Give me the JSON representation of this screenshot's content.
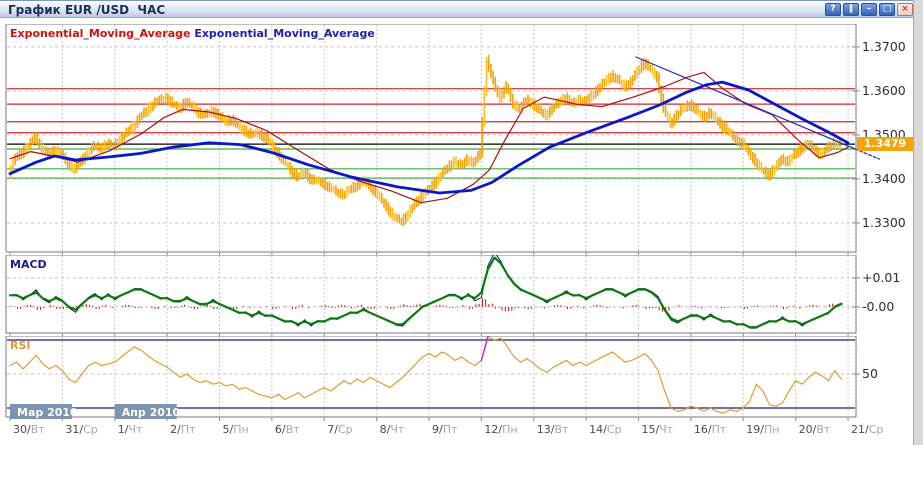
{
  "window": {
    "title": "График EUR /USD  ЧАС",
    "buttons": [
      {
        "name": "help",
        "glyph": "?"
      },
      {
        "name": "pause",
        "glyph": "‖"
      },
      {
        "name": "minimize",
        "glyph": "–"
      },
      {
        "name": "maximize",
        "glyph": "□"
      },
      {
        "name": "close",
        "glyph": "×"
      }
    ]
  },
  "main_chart": {
    "legend": [
      {
        "label": "Exponential_Moving_Average",
        "color": "#cc1111"
      },
      {
        "label": "Exponential_Moving_Average",
        "color": "#2020b0"
      }
    ],
    "current_price": "1.3479",
    "current_price_bg": "#f5a40a"
  },
  "chart_data": [
    {
      "type": "candlestick",
      "panel": "price",
      "x_tick_labels": [
        "30/Вт",
        "31/Ср",
        "1/Чт",
        "2/Пт",
        "5/Пн",
        "6/Вт",
        "7/Ср",
        "8/Чт",
        "9/Пт",
        "12/Пн",
        "13/Вт",
        "14/Ср",
        "15/Чт",
        "16/Пт",
        "19/Пн",
        "20/Вт",
        "21/Ср"
      ],
      "months": [
        {
          "label": "Мар 2010",
          "day": 0
        },
        {
          "label": "Апр 2010",
          "day": 2
        }
      ],
      "y_ticks": [
        1.37,
        1.36,
        1.35,
        1.34,
        1.33
      ],
      "y_tick_labels": [
        "1.3700",
        "1.3600",
        "1.3500",
        "1.3400",
        "1.3300"
      ],
      "y_range": [
        1.3234,
        1.3752
      ],
      "samples_per_day": 8,
      "closes": [
        1.3415,
        1.3448,
        1.346,
        1.3475,
        1.3495,
        1.347,
        1.3455,
        1.3465,
        1.3455,
        1.3435,
        1.3422,
        1.344,
        1.346,
        1.3475,
        1.347,
        1.348,
        1.3475,
        1.349,
        1.3505,
        1.352,
        1.354,
        1.3555,
        1.357,
        1.358,
        1.3585,
        1.357,
        1.356,
        1.3575,
        1.3565,
        1.355,
        1.3545,
        1.3555,
        1.3545,
        1.353,
        1.3535,
        1.352,
        1.351,
        1.35,
        1.3505,
        1.3495,
        1.348,
        1.346,
        1.344,
        1.342,
        1.3405,
        1.3415,
        1.34,
        1.3395,
        1.339,
        1.338,
        1.337,
        1.3365,
        1.3375,
        1.3385,
        1.3395,
        1.3385,
        1.337,
        1.335,
        1.333,
        1.331,
        1.3305,
        1.332,
        1.3345,
        1.336,
        1.3375,
        1.339,
        1.341,
        1.3425,
        1.344,
        1.343,
        1.3445,
        1.3435,
        1.346,
        1.367,
        1.362,
        1.3585,
        1.361,
        1.357,
        1.356,
        1.358,
        1.357,
        1.3555,
        1.3545,
        1.356,
        1.3575,
        1.3585,
        1.357,
        1.358,
        1.3575,
        1.359,
        1.3605,
        1.362,
        1.3635,
        1.3625,
        1.361,
        1.362,
        1.3645,
        1.3665,
        1.365,
        1.363,
        1.356,
        1.3525,
        1.3545,
        1.356,
        1.357,
        1.3555,
        1.354,
        1.355,
        1.3535,
        1.352,
        1.3505,
        1.349,
        1.348,
        1.346,
        1.344,
        1.342,
        1.3408,
        1.3425,
        1.3445,
        1.344,
        1.3455,
        1.347,
        1.348,
        1.3465,
        1.3455,
        1.347,
        1.3482,
        1.3479
      ],
      "levels": {
        "resistance": [
          1.3605,
          1.357,
          1.353,
          1.3505
        ],
        "current": 1.3479,
        "support": [
          1.3468,
          1.3423,
          1.3402
        ]
      },
      "ema_slow_keypoints": [
        [
          0,
          1.3412
        ],
        [
          0.5,
          1.3438
        ],
        [
          0.85,
          1.3452
        ],
        [
          1.25,
          1.3443
        ],
        [
          1.9,
          1.345
        ],
        [
          2.5,
          1.3458
        ],
        [
          3.1,
          1.3472
        ],
        [
          3.8,
          1.3482
        ],
        [
          4.4,
          1.3478
        ],
        [
          5.0,
          1.346
        ],
        [
          5.7,
          1.3432
        ],
        [
          6.5,
          1.3405
        ],
        [
          7.4,
          1.3382
        ],
        [
          8.2,
          1.3368
        ],
        [
          8.8,
          1.3374
        ],
        [
          9.2,
          1.3392
        ],
        [
          9.7,
          1.343
        ],
        [
          10.3,
          1.3472
        ],
        [
          11.0,
          1.3505
        ],
        [
          11.8,
          1.354
        ],
        [
          12.4,
          1.3568
        ],
        [
          12.9,
          1.3596
        ],
        [
          13.3,
          1.3614
        ],
        [
          13.6,
          1.362
        ],
        [
          14.1,
          1.3602
        ],
        [
          14.6,
          1.357
        ],
        [
          15.1,
          1.3538
        ],
        [
          15.6,
          1.3508
        ],
        [
          16.0,
          1.3482
        ]
      ],
      "ema_fast_keypoints": [
        [
          0,
          1.3446
        ],
        [
          0.4,
          1.3462
        ],
        [
          0.9,
          1.345
        ],
        [
          1.3,
          1.3438
        ],
        [
          1.9,
          1.3464
        ],
        [
          2.5,
          1.3502
        ],
        [
          2.95,
          1.354
        ],
        [
          3.3,
          1.3558
        ],
        [
          3.8,
          1.3552
        ],
        [
          4.3,
          1.3538
        ],
        [
          4.9,
          1.351
        ],
        [
          5.5,
          1.3465
        ],
        [
          6.1,
          1.3422
        ],
        [
          6.7,
          1.3394
        ],
        [
          7.3,
          1.3372
        ],
        [
          7.85,
          1.3346
        ],
        [
          8.35,
          1.3356
        ],
        [
          8.85,
          1.3388
        ],
        [
          9.15,
          1.342
        ],
        [
          9.45,
          1.3488
        ],
        [
          9.8,
          1.356
        ],
        [
          10.2,
          1.3586
        ],
        [
          10.8,
          1.357
        ],
        [
          11.3,
          1.3564
        ],
        [
          11.9,
          1.3586
        ],
        [
          12.5,
          1.361
        ],
        [
          12.95,
          1.3632
        ],
        [
          13.25,
          1.3642
        ],
        [
          13.6,
          1.3606
        ],
        [
          14.05,
          1.357
        ],
        [
          14.55,
          1.3546
        ],
        [
          15.05,
          1.3488
        ],
        [
          15.45,
          1.3448
        ],
        [
          15.8,
          1.346
        ],
        [
          16.0,
          1.3472
        ]
      ],
      "trendline": [
        [
          11.95,
          1.3677
        ],
        [
          16.6,
          1.3445
        ]
      ],
      "current_price": 1.3479
    },
    {
      "type": "line",
      "panel": "indicator",
      "label": "MACD",
      "y_tick_labels": [
        "+0.01",
        "-0.00"
      ],
      "y_tick_values": [
        0.01,
        0
      ],
      "y_range": [
        -0.009,
        0.0179
      ],
      "values_x1000": [
        4,
        4,
        3,
        4,
        5,
        3,
        2,
        3,
        2,
        0,
        -1,
        1,
        3,
        4,
        3,
        4,
        3,
        4,
        5,
        6,
        6,
        5,
        4,
        3,
        3,
        2,
        2,
        3,
        2,
        1,
        1,
        2,
        1,
        0,
        -1,
        -2,
        -2,
        -3,
        -2,
        -3,
        -3,
        -4,
        -5,
        -5,
        -6,
        -5,
        -6,
        -5,
        -5,
        -4,
        -4,
        -3,
        -2,
        -2,
        -1,
        -2,
        -3,
        -4,
        -5,
        -6,
        -6,
        -4,
        -2,
        0,
        1,
        2,
        3,
        4,
        4,
        3,
        4,
        3,
        5,
        13,
        17,
        15,
        11,
        8,
        6,
        5,
        4,
        3,
        2,
        3,
        4,
        5,
        4,
        4,
        3,
        4,
        5,
        6,
        6,
        5,
        4,
        5,
        6,
        6,
        5,
        3,
        -1,
        -4,
        -5,
        -4,
        -3,
        -3,
        -4,
        -3,
        -4,
        -5,
        -5,
        -6,
        -6,
        -7,
        -7,
        -6,
        -5,
        -5,
        -4,
        -5,
        -5,
        -6,
        -5,
        -4,
        -3,
        -2,
        0,
        1
      ],
      "line_color": "#0a7a0a",
      "signal_color": "#101c70",
      "histogram_color": "#cc1111"
    },
    {
      "type": "line",
      "panel": "indicator",
      "label": "RSI",
      "levels": [
        70,
        30
      ],
      "mid_level": 50,
      "y_tick_labels": [
        "50"
      ],
      "y_tick_values": [
        50
      ],
      "y_range": [
        24.7,
        72.35
      ],
      "values": [
        55,
        57,
        53,
        57,
        61,
        56,
        53,
        55,
        52,
        47,
        45,
        50,
        55,
        57,
        55,
        56,
        57,
        60,
        63,
        66,
        64,
        61,
        58,
        56,
        54,
        51,
        48,
        50,
        47,
        45,
        46,
        44,
        45,
        43,
        44,
        41,
        42,
        40,
        38,
        37,
        36,
        38,
        35,
        37,
        39,
        36,
        38,
        40,
        42,
        40,
        43,
        46,
        44,
        47,
        45,
        48,
        46,
        44,
        42,
        45,
        48,
        52,
        56,
        60,
        62,
        60,
        63,
        61,
        58,
        60,
        57,
        55,
        58,
        72,
        70,
        71,
        66,
        60,
        57,
        59,
        56,
        53,
        51,
        54,
        56,
        58,
        55,
        57,
        55,
        57,
        59,
        61,
        63,
        60,
        57,
        58,
        60,
        62,
        58,
        52,
        40,
        30,
        28,
        29,
        31,
        30,
        28,
        30,
        28,
        27,
        29,
        28,
        30,
        34,
        44,
        40,
        32,
        31,
        33,
        40,
        46,
        44,
        48,
        51,
        49,
        46,
        52,
        47
      ],
      "overbought_segment_index": 73,
      "line_color": "#e29a2e",
      "spike_color": "#cc22cc",
      "level_color": "#1a1a8a"
    }
  ]
}
